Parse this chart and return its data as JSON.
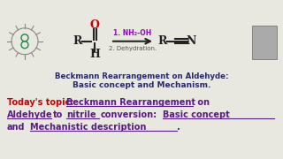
{
  "bg_color": "#f5f5f0",
  "top_bg": "#e8e8e0",
  "bottom_bg": "#ffffff",
  "title_line1": "Beckmann Rearrangement on Aldehyde:",
  "title_line2": "Basic concept and Mechanism.",
  "title_color": "#2a2a6a",
  "topic_prefix_color": "#cc0000",
  "topic_color": "#5a1a8a",
  "reagent1": "1. NH₂-OH",
  "reagent1_color": "#9900cc",
  "reagent2": "2. Dehydration.",
  "reagent2_color": "#555555",
  "arrow_color": "#222222",
  "bond_color": "#222222",
  "oxygen_color": "#cc0000",
  "underline_color": "#5a1a8a"
}
